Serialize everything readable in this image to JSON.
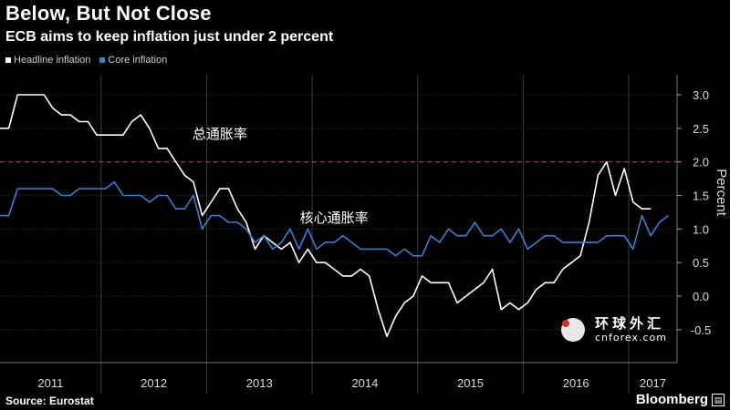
{
  "header": {
    "title": "Below, But Not Close",
    "subtitle": "ECB aims to keep inflation just under 2 percent"
  },
  "legend": {
    "headline": "Headline inflation",
    "core": "Core inflation"
  },
  "footer": {
    "source": "Source: Eurostat",
    "brand": "Bloomberg"
  },
  "watermark": {
    "line1": "环球外汇",
    "line2": "cnforex.com"
  },
  "colors": {
    "headline": "#ffffff",
    "core": "#3a7fd5",
    "target_line": "#c2185b",
    "grid": "#3a3a3a",
    "background": "#000000"
  },
  "chart_data": {
    "type": "line",
    "title": "Below, But Not Close",
    "subtitle": "ECB aims to keep inflation just under 2 percent",
    "ylabel": "Percent",
    "ylim": [
      -0.75,
      3.3
    ],
    "xlim": [
      "2011-01",
      "2017-06"
    ],
    "yticks": [
      -0.5,
      0.0,
      0.5,
      1.0,
      1.5,
      2.0,
      2.5,
      3.0
    ],
    "ytick_labels": [
      "-0.5",
      "0.0",
      "0.5",
      "1.0",
      "1.5",
      "2.0",
      "2.5",
      "3.0"
    ],
    "x_years": [
      "2011",
      "2012",
      "2013",
      "2014",
      "2015",
      "2016",
      "2017"
    ],
    "target_line": 2.0,
    "legend_position": "top-left",
    "annotations": [
      {
        "text": "总通胀率",
        "x": "2013-02",
        "y": 2.35
      },
      {
        "text": "核心通胀率",
        "x": "2014-03",
        "y": 1.1
      }
    ],
    "series": [
      {
        "name": "Headline inflation",
        "points": [
          [
            "2011-01",
            2.5
          ],
          [
            "2011-02",
            2.5
          ],
          [
            "2011-03",
            3.0
          ],
          [
            "2011-04",
            3.0
          ],
          [
            "2011-05",
            3.0
          ],
          [
            "2011-06",
            3.0
          ],
          [
            "2011-07",
            2.8
          ],
          [
            "2011-08",
            2.7
          ],
          [
            "2011-09",
            2.7
          ],
          [
            "2011-10",
            2.6
          ],
          [
            "2011-11",
            2.6
          ],
          [
            "2011-12",
            2.4
          ],
          [
            "2012-01",
            2.4
          ],
          [
            "2012-02",
            2.4
          ],
          [
            "2012-03",
            2.4
          ],
          [
            "2012-04",
            2.6
          ],
          [
            "2012-05",
            2.7
          ],
          [
            "2012-06",
            2.5
          ],
          [
            "2012-07",
            2.2
          ],
          [
            "2012-08",
            2.2
          ],
          [
            "2012-09",
            2.0
          ],
          [
            "2012-10",
            1.8
          ],
          [
            "2012-11",
            1.7
          ],
          [
            "2012-12",
            1.2
          ],
          [
            "2013-01",
            1.4
          ],
          [
            "2013-02",
            1.6
          ],
          [
            "2013-03",
            1.6
          ],
          [
            "2013-04",
            1.3
          ],
          [
            "2013-05",
            1.1
          ],
          [
            "2013-06",
            0.7
          ],
          [
            "2013-07",
            0.9
          ],
          [
            "2013-08",
            0.8
          ],
          [
            "2013-09",
            0.7
          ],
          [
            "2013-10",
            0.8
          ],
          [
            "2013-11",
            0.5
          ],
          [
            "2013-12",
            0.7
          ],
          [
            "2014-01",
            0.5
          ],
          [
            "2014-02",
            0.5
          ],
          [
            "2014-03",
            0.4
          ],
          [
            "2014-04",
            0.3
          ],
          [
            "2014-05",
            0.3
          ],
          [
            "2014-06",
            0.4
          ],
          [
            "2014-07",
            0.3
          ],
          [
            "2014-08",
            -0.2
          ],
          [
            "2014-09",
            -0.6
          ],
          [
            "2014-10",
            -0.3
          ],
          [
            "2014-11",
            -0.1
          ],
          [
            "2014-12",
            0.0
          ],
          [
            "2015-01",
            0.3
          ],
          [
            "2015-02",
            0.2
          ],
          [
            "2015-03",
            0.2
          ],
          [
            "2015-04",
            0.2
          ],
          [
            "2015-05",
            -0.1
          ],
          [
            "2015-06",
            0.0
          ],
          [
            "2015-07",
            0.1
          ],
          [
            "2015-08",
            0.2
          ],
          [
            "2015-09",
            0.4
          ],
          [
            "2015-10",
            -0.2
          ],
          [
            "2015-11",
            -0.1
          ],
          [
            "2015-12",
            -0.2
          ],
          [
            "2016-01",
            -0.1
          ],
          [
            "2016-02",
            0.1
          ],
          [
            "2016-03",
            0.2
          ],
          [
            "2016-04",
            0.2
          ],
          [
            "2016-05",
            0.4
          ],
          [
            "2016-06",
            0.5
          ],
          [
            "2016-07",
            0.6
          ],
          [
            "2016-08",
            1.1
          ],
          [
            "2016-09",
            1.8
          ],
          [
            "2016-10",
            2.0
          ],
          [
            "2016-11",
            1.5
          ],
          [
            "2016-12",
            1.9
          ],
          [
            "2017-01",
            1.4
          ],
          [
            "2017-02",
            1.3
          ],
          [
            "2017-03",
            1.3
          ]
        ]
      },
      {
        "name": "Core inflation",
        "points": [
          [
            "2011-01",
            1.2
          ],
          [
            "2011-02",
            1.2
          ],
          [
            "2011-03",
            1.6
          ],
          [
            "2011-04",
            1.6
          ],
          [
            "2011-05",
            1.6
          ],
          [
            "2011-06",
            1.6
          ],
          [
            "2011-07",
            1.6
          ],
          [
            "2011-08",
            1.5
          ],
          [
            "2011-09",
            1.5
          ],
          [
            "2011-10",
            1.6
          ],
          [
            "2011-11",
            1.6
          ],
          [
            "2011-12",
            1.6
          ],
          [
            "2012-01",
            1.6
          ],
          [
            "2012-02",
            1.7
          ],
          [
            "2012-03",
            1.5
          ],
          [
            "2012-04",
            1.5
          ],
          [
            "2012-05",
            1.5
          ],
          [
            "2012-06",
            1.4
          ],
          [
            "2012-07",
            1.5
          ],
          [
            "2012-08",
            1.5
          ],
          [
            "2012-09",
            1.3
          ],
          [
            "2012-10",
            1.3
          ],
          [
            "2012-11",
            1.5
          ],
          [
            "2012-12",
            1.0
          ],
          [
            "2013-01",
            1.2
          ],
          [
            "2013-02",
            1.2
          ],
          [
            "2013-03",
            1.1
          ],
          [
            "2013-04",
            1.1
          ],
          [
            "2013-05",
            1.0
          ],
          [
            "2013-06",
            0.8
          ],
          [
            "2013-07",
            0.9
          ],
          [
            "2013-08",
            0.7
          ],
          [
            "2013-09",
            0.8
          ],
          [
            "2013-10",
            1.0
          ],
          [
            "2013-11",
            0.7
          ],
          [
            "2013-12",
            1.0
          ],
          [
            "2014-01",
            0.7
          ],
          [
            "2014-02",
            0.8
          ],
          [
            "2014-03",
            0.8
          ],
          [
            "2014-04",
            0.9
          ],
          [
            "2014-05",
            0.8
          ],
          [
            "2014-06",
            0.7
          ],
          [
            "2014-07",
            0.7
          ],
          [
            "2014-08",
            0.7
          ],
          [
            "2014-09",
            0.7
          ],
          [
            "2014-10",
            0.6
          ],
          [
            "2014-11",
            0.7
          ],
          [
            "2014-12",
            0.6
          ],
          [
            "2015-01",
            0.6
          ],
          [
            "2015-02",
            0.9
          ],
          [
            "2015-03",
            0.8
          ],
          [
            "2015-04",
            1.0
          ],
          [
            "2015-05",
            0.9
          ],
          [
            "2015-06",
            0.9
          ],
          [
            "2015-07",
            1.1
          ],
          [
            "2015-08",
            0.9
          ],
          [
            "2015-09",
            0.9
          ],
          [
            "2015-10",
            1.0
          ],
          [
            "2015-11",
            0.8
          ],
          [
            "2015-12",
            1.0
          ],
          [
            "2016-01",
            0.7
          ],
          [
            "2016-02",
            0.8
          ],
          [
            "2016-03",
            0.9
          ],
          [
            "2016-04",
            0.9
          ],
          [
            "2016-05",
            0.8
          ],
          [
            "2016-06",
            0.8
          ],
          [
            "2016-07",
            0.8
          ],
          [
            "2016-08",
            0.8
          ],
          [
            "2016-09",
            0.8
          ],
          [
            "2016-10",
            0.9
          ],
          [
            "2016-11",
            0.9
          ],
          [
            "2016-12",
            0.9
          ],
          [
            "2017-01",
            0.7
          ],
          [
            "2017-02",
            1.2
          ],
          [
            "2017-03",
            0.9
          ],
          [
            "2017-04",
            1.1
          ],
          [
            "2017-05",
            1.2
          ]
        ]
      }
    ]
  }
}
